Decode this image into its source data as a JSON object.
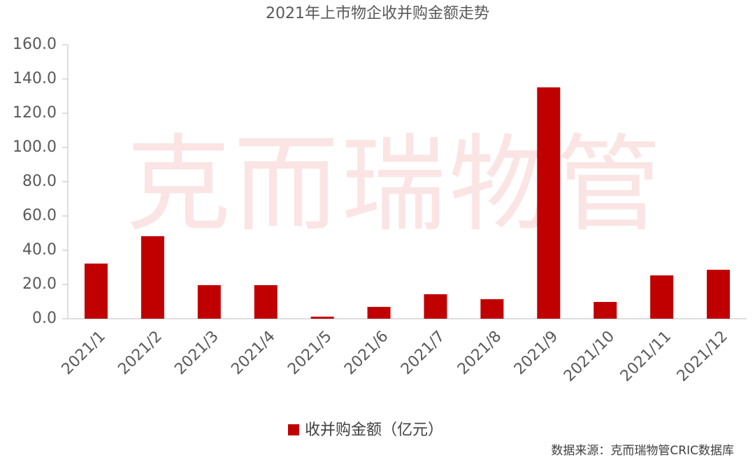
{
  "chart_data": {
    "type": "bar",
    "title": "2021年上市物企收并购金额走势",
    "categories": [
      "2021/1",
      "2021/2",
      "2021/3",
      "2021/4",
      "2021/5",
      "2021/6",
      "2021/7",
      "2021/8",
      "2021/9",
      "2021/10",
      "2021/11",
      "2021/12"
    ],
    "series": [
      {
        "name": "收并购金额（亿元）",
        "color": "#c00000",
        "values": [
          32.2,
          48.2,
          19.6,
          19.6,
          1.2,
          6.9,
          14.3,
          11.4,
          135.1,
          9.8,
          25.3,
          28.6
        ]
      }
    ],
    "ylim": [
      0,
      160
    ],
    "yticks": [
      {
        "value": 0,
        "label": "0.0"
      },
      {
        "value": 20,
        "label": "20.0"
      },
      {
        "value": 40,
        "label": "40.0"
      },
      {
        "value": 60,
        "label": "60.0"
      },
      {
        "value": 80,
        "label": "80.0"
      },
      {
        "value": 100,
        "label": "100.0"
      },
      {
        "value": 120,
        "label": "120.0"
      },
      {
        "value": 140,
        "label": "140.0"
      },
      {
        "value": 160,
        "label": "160.0"
      }
    ],
    "legend": "bottom",
    "watermark": "克而瑞物管",
    "source": "数据来源：克而瑞物管CRIC数据库"
  }
}
